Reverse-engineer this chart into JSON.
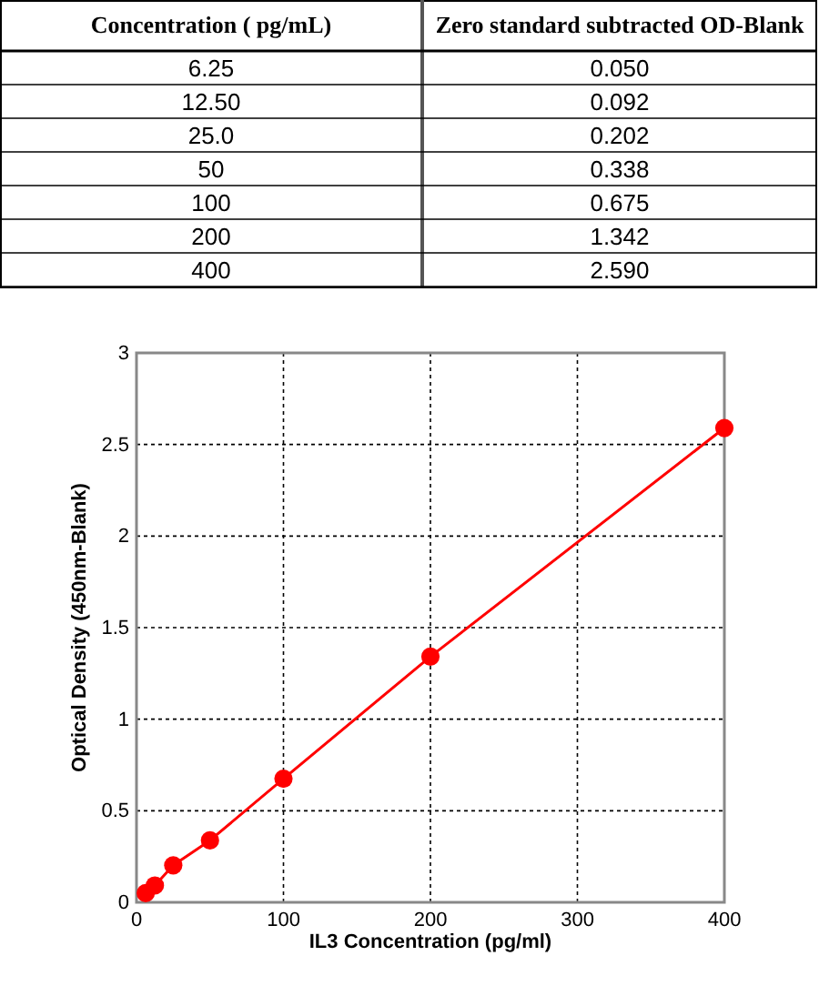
{
  "chart_data": [
    {
      "type": "other",
      "annotations": [
        "Concentration ( pg/mL)",
        "Zero standard subtracted OD-Blank",
        "6.25",
        "0.050",
        "12.50",
        "0.092",
        "25.0",
        "0.202",
        "50",
        "0.338",
        "100",
        "0.675",
        "200",
        "1.342",
        "400",
        "2.590"
      ]
    },
    {
      "type": "line",
      "xlabel": "IL3 Concentration (pg/ml)",
      "ylabel": "Optical Density (450nm-Blank)",
      "x": [
        6.25,
        12.5,
        25,
        50,
        100,
        200,
        400
      ],
      "series": [
        {
          "color": "#ff0000",
          "values": [
            0.05,
            0.092,
            0.202,
            0.338,
            0.675,
            1.342,
            2.59
          ]
        }
      ],
      "xlim": [
        0,
        400
      ],
      "xticks": [
        0,
        100,
        200,
        300,
        400
      ],
      "ylim": [
        0,
        3
      ],
      "yticks": [
        0,
        0.5,
        1,
        1.5,
        2,
        2.5,
        3
      ],
      "grid": true,
      "marker": "circle",
      "line_style": "solid"
    }
  ]
}
